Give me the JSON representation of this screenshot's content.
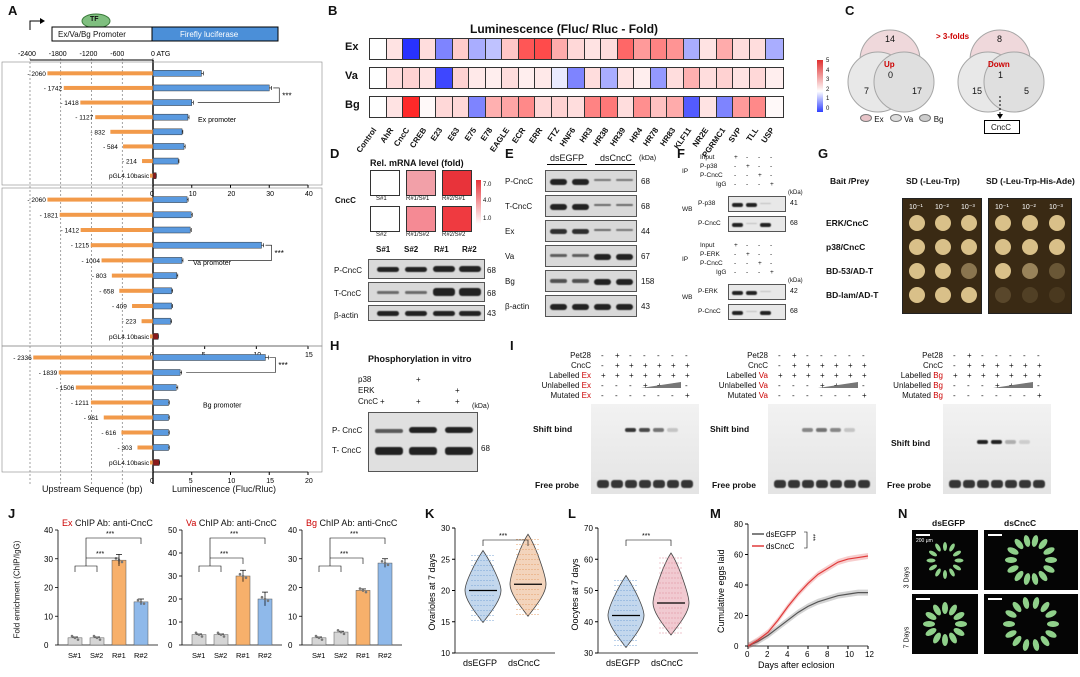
{
  "labels": {
    "A": "A",
    "B": "B",
    "C": "C",
    "D": "D",
    "E": "E",
    "F": "F",
    "G": "G",
    "H": "H",
    "I": "I",
    "J": "J",
    "K": "K",
    "L": "L",
    "M": "M",
    "N": "N"
  },
  "panelA": {
    "tf": "TF",
    "promoter": "Ex/Va/Bg Promoter",
    "reporter": "Firefly luciferase",
    "axis_ticks": [
      "-2400",
      "-1800",
      "-1200",
      "-600",
      "0_ATG"
    ],
    "xlabel_left": "Upstream Sequence (bp)",
    "xlabel_right": "Luminescence (Fluc/Rluc)",
    "sig": "***",
    "blocks": [
      {
        "name": "Ex promoter",
        "items": [
          "- 2060",
          "- 1742",
          "- 1418",
          "- 1127",
          "- 832",
          "- 584",
          "- 214",
          "pGL4.10basic"
        ],
        "lengths": [
          2060,
          1742,
          1418,
          1127,
          832,
          584,
          214,
          0
        ],
        "values": [
          12.5,
          30,
          10,
          9,
          7.5,
          8,
          6.5,
          0.8
        ],
        "err": [
          0.5,
          0.6,
          0.4,
          0.3,
          0.2,
          0.3,
          0.2,
          0.05
        ],
        "xmax": 40,
        "ticks": [
          "0",
          "10",
          "20",
          "30",
          "40"
        ]
      },
      {
        "name": "Va promoter",
        "items": [
          "- 2060",
          "- 1821",
          "- 1412",
          "- 1215",
          "- 1004",
          "- 803",
          "- 658",
          "- 409",
          "- 223",
          "pGL4.10basic"
        ],
        "lengths": [
          2060,
          1821,
          1412,
          1215,
          1004,
          803,
          658,
          409,
          223,
          0
        ],
        "values": [
          3.3,
          3.7,
          3.6,
          10.5,
          2.8,
          2.3,
          1.8,
          1.8,
          1.7,
          0.5
        ],
        "err": [
          0.1,
          0.1,
          0.1,
          0.2,
          0.1,
          0.1,
          0.1,
          0.1,
          0.1,
          0.03
        ],
        "xmax": 15,
        "ticks": [
          "0",
          "5",
          "10",
          "15"
        ]
      },
      {
        "name": "Bg promoter",
        "items": [
          "- 2336",
          "- 1839",
          "- 1506",
          "- 1211",
          "- 961",
          "- 616",
          "- 303",
          "pGL4.10basic"
        ],
        "lengths": [
          2336,
          1839,
          1506,
          1211,
          961,
          616,
          303,
          0
        ],
        "values": [
          14.5,
          3.5,
          3,
          2,
          2,
          2,
          2,
          0.8
        ],
        "err": [
          0.4,
          0.2,
          0.2,
          0.1,
          0.1,
          0.1,
          0.1,
          0.05
        ],
        "xmax": 20,
        "ticks": [
          "0",
          "5",
          "10",
          "15",
          "20"
        ]
      }
    ]
  },
  "panelB": {
    "title": "Luminescence (Fluc/ Rluc - Fold)",
    "rows": [
      "Ex",
      "Va",
      "Bg"
    ],
    "cols": [
      "Control",
      "AhR",
      "CncC",
      "CREB",
      "E23",
      "E63",
      "E75",
      "E78",
      "EAGLE",
      "ECR",
      "ERR",
      "FTZ",
      "HNF6",
      "HR3",
      "HR38",
      "HR39",
      "HR4",
      "HR78",
      "HR83",
      "KLF11",
      "NR2E",
      "PGRMC1",
      "SVP",
      "TLL",
      "USP"
    ],
    "values": [
      [
        1.0,
        1.5,
        0.0,
        1.6,
        0.4,
        1.9,
        0.6,
        0.7,
        2.0,
        4.0,
        4.2,
        2.5,
        1.7,
        1.5,
        1.6,
        3.7,
        2.8,
        3.2,
        2.9,
        0.6,
        1.5,
        2.5,
        1.6,
        1.6,
        0.6
      ],
      [
        1.0,
        1.6,
        1.8,
        1.5,
        0.1,
        1.8,
        1.4,
        1.3,
        1.6,
        1.3,
        1.4,
        0.9,
        0.4,
        1.6,
        0.6,
        1.5,
        1.3,
        0.5,
        1.6,
        2.4,
        1.6,
        1.8,
        1.5,
        1.7,
        1.3
      ],
      [
        1.0,
        1.5,
        4.8,
        1.1,
        1.7,
        1.7,
        0.4,
        2.4,
        2.6,
        3.1,
        1.7,
        1.8,
        1.6,
        3.2,
        3.4,
        1.6,
        3.0,
        2.1,
        2.5,
        0.2,
        1.5,
        0.4,
        2.8,
        3.1,
        1.1
      ]
    ],
    "scale": [
      "5",
      "4",
      "3",
      "2",
      "1",
      "0"
    ]
  },
  "panelC": {
    "up_label": "Up",
    "down_label": "Down",
    "threshold": "> 3-folds",
    "up_counts": [
      "14",
      "7",
      "17",
      "0"
    ],
    "down_counts": [
      "8",
      "15",
      "5",
      "1"
    ],
    "legend": [
      "Ex",
      "Va",
      "Bg"
    ],
    "result": "CncC"
  },
  "panelD": {
    "title": "Rel. mRNA level (fold)",
    "gene": "CncC",
    "cells": [
      "S#1",
      "R#1/S#1",
      "R#2/S#1",
      "S#2",
      "R#1/S#2",
      "R#2/S#2"
    ],
    "scale": [
      "7.0",
      "4.0",
      "1.0"
    ],
    "lanes": [
      "S#1",
      "S#2",
      "R#1",
      "R#2"
    ],
    "rows": [
      "P-CncC",
      "T-CncC",
      "β-actin"
    ],
    "kda": [
      "68",
      "68",
      "43"
    ]
  },
  "panelE": {
    "groups": [
      "dsEGFP",
      "dsCncC"
    ],
    "kda_label": "(kDa)",
    "rows": [
      "P-CncC",
      "T-CncC",
      "Ex",
      "Va",
      "Bg",
      "β-actin"
    ],
    "kda": [
      "68",
      "68",
      "44",
      "67",
      "158",
      "43"
    ]
  },
  "panelF": {
    "top": {
      "rows": [
        "Input",
        "P-p38",
        "P-CncC",
        "IgG"
      ],
      "ip": "IP",
      "wb": "WB",
      "wbrows": [
        "P-p38",
        "P-CncC"
      ],
      "kda": [
        "41",
        "68"
      ]
    },
    "bottom": {
      "rows": [
        "Input",
        "P-ERK",
        "P-CncC",
        "IgG"
      ],
      "ip": "IP",
      "wb": "WB",
      "wbrows": [
        "P-ERK",
        "P-CncC"
      ],
      "kda": [
        "42",
        "68"
      ]
    },
    "kda_label": "(kDa)"
  },
  "panelG": {
    "header": [
      "Bait /Prey",
      "SD (-Leu-Trp)",
      "SD (-Leu-Trp-His-Ade)"
    ],
    "dil": [
      "10⁻¹",
      "10⁻²",
      "10⁻³"
    ],
    "rows": [
      "ERK/CncC",
      "p38/CncC",
      "BD-53/AD-T",
      "BD-lam/AD-T"
    ]
  },
  "panelH": {
    "title": "Phosphorylation in vitro",
    "rows": [
      "p38",
      "ERK",
      "CncC"
    ],
    "bands": [
      "P- CncC",
      "T- CncC"
    ],
    "kda": "68",
    "kda_label": "(kDa)"
  },
  "panelI": {
    "rows": [
      "Pet28",
      "CncC",
      "Labelled",
      "Unlabelled",
      "Mutated"
    ],
    "genes": [
      "Ex",
      "Va",
      "Bg"
    ],
    "shift": "Shift bind",
    "free": "Free probe"
  },
  "panelJ": {
    "titles": [
      {
        "gene": "Ex",
        "rest": " ChIP Ab: anti-CncC"
      },
      {
        "gene": "Va",
        "rest": " ChIP Ab: anti-CncC"
      },
      {
        "gene": "Bg",
        "rest": " ChIP Ab: anti-CncC"
      }
    ],
    "ylabel": "Fold enrichment (ChIP/IgG)",
    "cats": [
      "S#1",
      "S#2",
      "R#1",
      "R#2"
    ],
    "sig": "***",
    "charts": [
      {
        "values": [
          2.5,
          2.5,
          29.5,
          15
        ],
        "err": [
          0.3,
          0.3,
          2,
          1
        ],
        "ymax": 40,
        "ticks": [
          "0",
          "10",
          "20",
          "30",
          "40"
        ]
      },
      {
        "values": [
          4.5,
          4.5,
          30,
          20
        ],
        "err": [
          0.3,
          0.3,
          2.5,
          3
        ],
        "ymax": 50,
        "ticks": [
          "0",
          "10",
          "20",
          "30",
          "40",
          "50"
        ]
      },
      {
        "values": [
          2.5,
          4.5,
          19,
          28.5
        ],
        "err": [
          0.3,
          0.3,
          0.5,
          1.5
        ],
        "ymax": 40,
        "ticks": [
          "0",
          "10",
          "20",
          "30",
          "40"
        ]
      }
    ]
  },
  "panelK": {
    "ylabel": "Ovarioles at 7 days",
    "cats": [
      "dsEGFP",
      "dsCncC"
    ],
    "sig": "***",
    "ticks": [
      "10",
      "15",
      "20",
      "25",
      "30"
    ],
    "medians": [
      20,
      21
    ]
  },
  "panelL": {
    "ylabel": "Oocytes at 7 days",
    "cats": [
      "dsEGFP",
      "dsCncC"
    ],
    "sig": "***",
    "ticks": [
      "30",
      "40",
      "50",
      "60",
      "70"
    ],
    "medians": [
      42,
      46
    ]
  },
  "panelM": {
    "ylabel": "Cumulative eggs laid",
    "xlabel": "Days after eclosion",
    "legend": [
      "dsEGFP",
      "dsCncC"
    ],
    "sig": "***",
    "xticks": [
      "0",
      "2",
      "4",
      "6",
      "8",
      "10",
      "12"
    ],
    "yticks": [
      "0",
      "20",
      "40",
      "60",
      "80"
    ],
    "chart_data": {
      "type": "line",
      "x": [
        0,
        1,
        2,
        3,
        4,
        5,
        6,
        7,
        8,
        9,
        10,
        11,
        12
      ],
      "series": [
        {
          "name": "dsEGFP",
          "values": [
            0,
            3,
            7,
            12,
            17,
            22,
            26,
            29,
            31,
            33,
            34,
            35,
            35
          ]
        },
        {
          "name": "dsCncC",
          "values": [
            0,
            4,
            9,
            17,
            26,
            34,
            41,
            47,
            51,
            55,
            57,
            58,
            59
          ]
        }
      ],
      "ylim": [
        0,
        80
      ],
      "xlim": [
        0,
        12
      ]
    }
  },
  "panelN": {
    "cols": [
      "dsEGFP",
      "dsCncC"
    ],
    "rows": [
      "3 Days",
      "7 Days"
    ],
    "scale": "200 μm"
  }
}
